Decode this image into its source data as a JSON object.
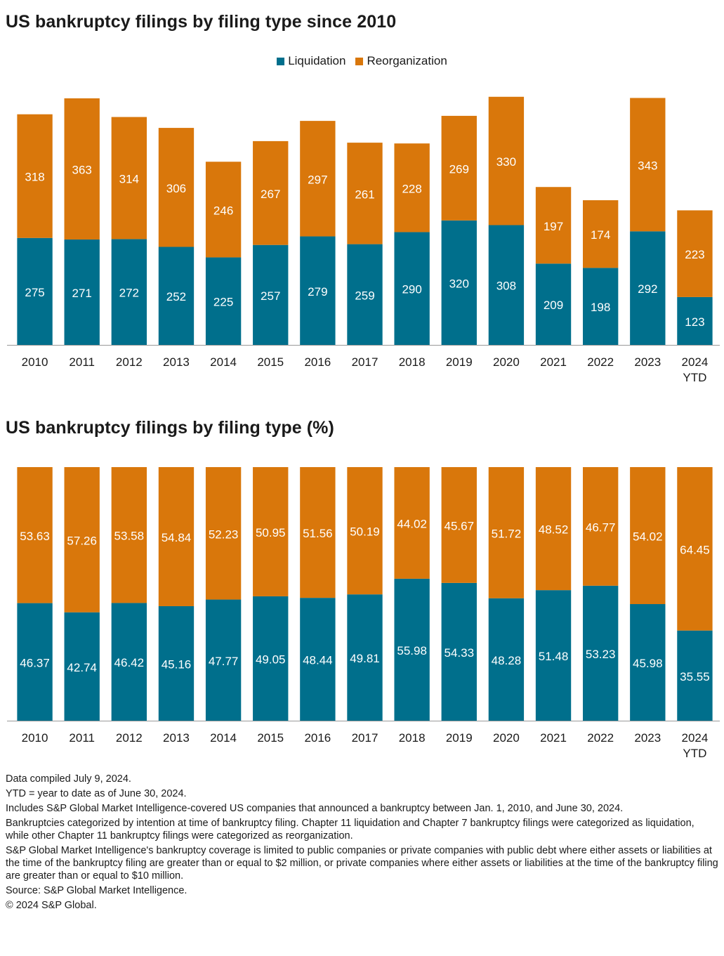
{
  "colors": {
    "liquidation": "#006f8c",
    "reorganization": "#d9770b",
    "axis": "#999999"
  },
  "legend": {
    "liquidation": "Liquidation",
    "reorganization": "Reorganization"
  },
  "chart_data": [
    {
      "type": "bar",
      "stacked": true,
      "title": "US bankruptcy filings by filing type since 2010",
      "legend_position": "top-center",
      "grid": false,
      "categories": [
        "2010",
        "2011",
        "2012",
        "2013",
        "2014",
        "2015",
        "2016",
        "2017",
        "2018",
        "2019",
        "2020",
        "2021",
        "2022",
        "2023",
        "2024 YTD"
      ],
      "series": [
        {
          "name": "Liquidation",
          "values": [
            275,
            271,
            272,
            252,
            225,
            257,
            279,
            259,
            290,
            320,
            308,
            209,
            198,
            292,
            123
          ]
        },
        {
          "name": "Reorganization",
          "values": [
            318,
            363,
            314,
            306,
            246,
            267,
            297,
            261,
            228,
            269,
            330,
            197,
            174,
            343,
            223
          ]
        }
      ],
      "ylim": [
        0,
        634
      ]
    },
    {
      "type": "bar",
      "stacked": true,
      "title": "US bankruptcy filings by filing type (%)",
      "grid": false,
      "categories": [
        "2010",
        "2011",
        "2012",
        "2013",
        "2014",
        "2015",
        "2016",
        "2017",
        "2018",
        "2019",
        "2020",
        "2021",
        "2022",
        "2023",
        "2024 YTD"
      ],
      "series": [
        {
          "name": "Liquidation",
          "values": [
            46.37,
            42.74,
            46.42,
            45.16,
            47.77,
            49.05,
            48.44,
            49.81,
            55.98,
            54.33,
            48.28,
            51.48,
            53.23,
            45.98,
            35.55
          ]
        },
        {
          "name": "Reorganization",
          "values": [
            53.63,
            57.26,
            53.58,
            54.84,
            52.23,
            50.95,
            51.56,
            50.19,
            44.02,
            45.67,
            51.72,
            48.52,
            46.77,
            54.02,
            64.45
          ]
        }
      ],
      "ylim": [
        0,
        100
      ]
    }
  ],
  "notes": [
    "Data compiled July 9, 2024.",
    "YTD = year to date as of June 30, 2024.",
    "Includes S&P Global Market Intelligence-covered US companies that announced a bankruptcy between Jan. 1, 2010, and June 30, 2024.",
    "Bankruptcies categorized by intention at time of bankruptcy filing. Chapter 11 liquidation and Chapter 7 bankruptcy filings were categorized as liquidation, while other Chapter 11 bankruptcy filings were categorized as reorganization.",
    "S&P Global Market Intelligence's bankruptcy coverage is limited to public companies or private companies with public debt where either assets or liabilities at the time of the bankruptcy filing are greater than or equal to $2 million, or private companies where either assets or liabilities at the time of the bankruptcy filing are greater than or equal to $10 million.",
    "Source: S&P Global Market Intelligence.",
    "© 2024 S&P Global."
  ]
}
